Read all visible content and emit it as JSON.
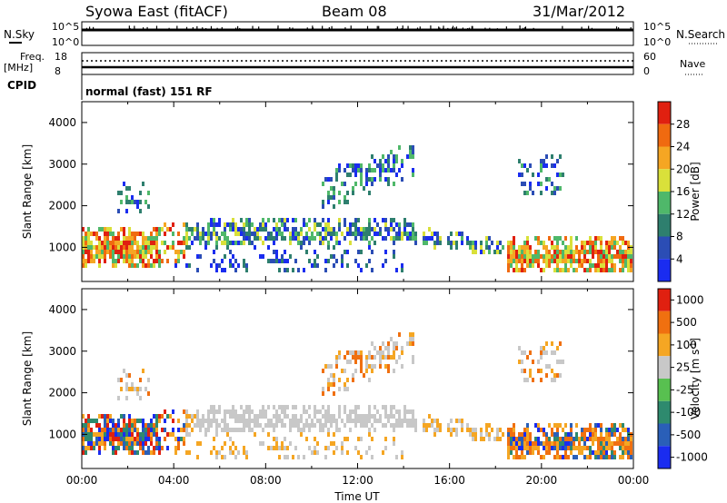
{
  "header": {
    "station": "Syowa East (fitACF)",
    "beam": "Beam 08",
    "date": "31/Mar/2012"
  },
  "status_panel": {
    "nsky_label": "N.Sky",
    "nsky_top": "10^5",
    "nsky_bottom": "10^0",
    "nsearch_label": "N.Search",
    "nsearch_top": "10^5",
    "nsearch_bottom": "10^0",
    "freq_label": "Freq.",
    "freq_unit": "[MHz]",
    "freq_top": "18",
    "freq_bottom": "8",
    "nave_label": "Nave",
    "nave_top": "60",
    "nave_bottom": "0",
    "cpid_label": "CPID",
    "cpid_text": "normal (fast) 151 RF"
  },
  "chart_data": [
    {
      "type": "heatmap",
      "name": "power",
      "xlabel": "",
      "ylabel": "Slant Range [km]",
      "x_hours": [
        0,
        24
      ],
      "ylim": [
        180,
        4500
      ],
      "yticks": [
        "1000",
        "2000",
        "3000",
        "4000"
      ],
      "colorbar_label": "Power [dB]",
      "colorbar_ticks": [
        "4",
        "8",
        "12",
        "16",
        "20",
        "24",
        "28"
      ],
      "colors": [
        "#1a2cf0",
        "#2b4db5",
        "#2e7f6e",
        "#4fb86a",
        "#d9e03a",
        "#f5a623",
        "#f06a10",
        "#e02010"
      ]
    },
    {
      "type": "heatmap",
      "name": "velocity",
      "xlabel": "Time UT",
      "ylabel": "Slant Range [km]",
      "x_hours": [
        0,
        24
      ],
      "xticks": [
        "00:00",
        "04:00",
        "08:00",
        "12:00",
        "16:00",
        "20:00",
        "00:00"
      ],
      "ylim": [
        180,
        4500
      ],
      "yticks": [
        "1000",
        "2000",
        "3000",
        "4000"
      ],
      "colorbar_label": "Velocity [m s-1]",
      "colorbar_ticks": [
        "1000",
        "500",
        "100",
        "25",
        "-25",
        "-100",
        "-500",
        "-1000"
      ],
      "colors": [
        "#1a2cf0",
        "#2a5fb8",
        "#2e8a6e",
        "#58c050",
        "#c8c8c8",
        "#f5a623",
        "#f07010",
        "#e02010"
      ]
    }
  ]
}
